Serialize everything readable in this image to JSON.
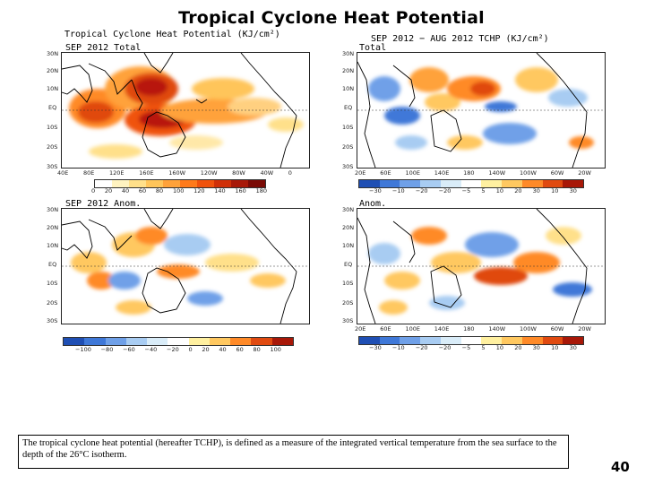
{
  "title": "Tropical Cyclone Heat Potential",
  "panels": {
    "top_left": {
      "header": "Tropical Cyclone Heat Potential (KJ/cm²)",
      "label": "SEP 2012 Total",
      "yticks": [
        "30N",
        "20N",
        "10N",
        "EQ",
        "10S",
        "20S",
        "30S"
      ],
      "xticks": [
        "40E",
        "80E",
        "120E",
        "160E",
        "160W",
        "120W",
        "80W",
        "40W",
        "0"
      ],
      "colorbar_labels": [
        "0",
        "20",
        "40",
        "60",
        "80",
        "100",
        "120",
        "140",
        "160",
        "180"
      ]
    },
    "top_right": {
      "header": "SEP 2012 − AUG 2012 TCHP (KJ/cm²)",
      "label": "Total",
      "yticks": [
        "30N",
        "20N",
        "10N",
        "EQ",
        "10S",
        "20S",
        "30S"
      ],
      "xticks": [
        "20E",
        "60E",
        "100E",
        "140E",
        "180",
        "140W",
        "100W",
        "60W",
        "20W"
      ],
      "colorbar_labels": [
        "−30",
        "−10",
        "−20",
        "−20",
        "−5",
        "5",
        "10",
        "20",
        "30",
        "10",
        "30"
      ]
    },
    "bottom_left": {
      "label": "SEP 2012 Anom.",
      "yticks": [
        "30N",
        "20N",
        "10N",
        "EQ",
        "10S",
        "20S",
        "30S"
      ],
      "colorbar_labels": [
        "−100",
        "−80",
        "−60",
        "−40",
        "−20",
        "0",
        "20",
        "40",
        "60",
        "80",
        "100"
      ]
    },
    "bottom_right": {
      "label": "Anom.",
      "yticks": [
        "30N",
        "20N",
        "10N",
        "EQ",
        "10S",
        "20S",
        "30S"
      ],
      "xticks": [
        "20E",
        "60E",
        "100E",
        "140E",
        "180",
        "140W",
        "100W",
        "60W",
        "20W"
      ],
      "colorbar_labels": [
        "−30",
        "−10",
        "−20",
        "−20",
        "−5",
        "5",
        "10",
        "20",
        "30",
        "10",
        "30"
      ]
    }
  },
  "colors": {
    "total_scale": [
      "#ffffff",
      "#fff3c0",
      "#ffe08a",
      "#ffc55a",
      "#ffa23a",
      "#ff7a1a",
      "#f0520c",
      "#d03008",
      "#a81808",
      "#7a0a05"
    ],
    "anom_scale": [
      "#1f4fb4",
      "#3f78d8",
      "#6fa0e8",
      "#a8ccf2",
      "#d9ecf8",
      "#ffffff",
      "#fff0a0",
      "#ffc860",
      "#ff8a28",
      "#e04a10",
      "#a81808"
    ]
  },
  "caption": "The tropical cyclone heat potential (hereafter TCHP), is defined as a measure of the integrated vertical temperature from the sea surface to the depth of the 26°C isotherm.",
  "page_number": "40"
}
